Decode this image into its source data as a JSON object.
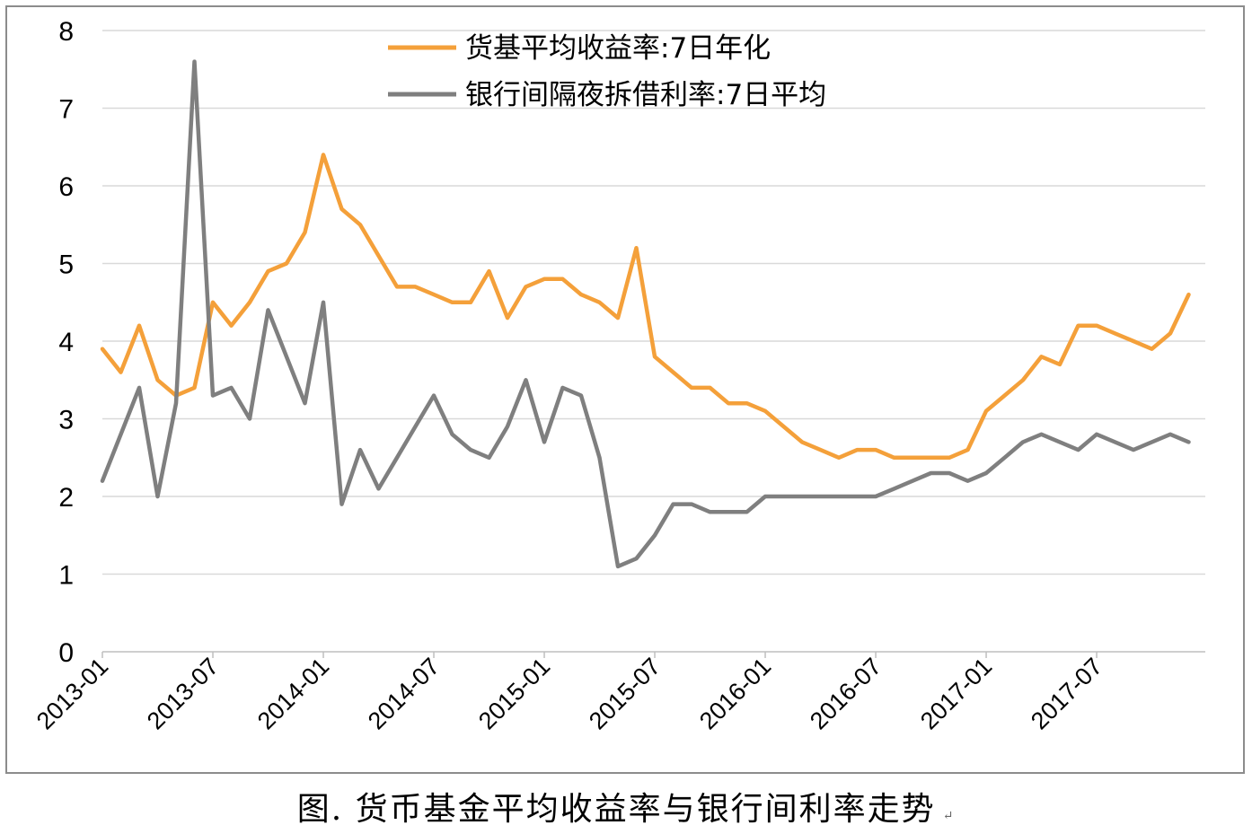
{
  "chart_data": {
    "type": "line",
    "title": "",
    "xlabel": "",
    "ylabel": "",
    "ylim": [
      0,
      8
    ],
    "yticks": [
      0,
      1,
      2,
      3,
      4,
      5,
      6,
      7,
      8
    ],
    "xlim": [
      "2013-01",
      "2017-12"
    ],
    "xticks": [
      "2013-01",
      "2013-07",
      "2014-01",
      "2014-07",
      "2015-01",
      "2015-07",
      "2016-01",
      "2016-07",
      "2017-01",
      "2017-07"
    ],
    "grid": "horizontal",
    "legend_position": "top-center",
    "series": [
      {
        "name": "货基平均收益率:7日年化",
        "color": "#F4A03A",
        "x": [
          "2013-01",
          "2013-02",
          "2013-03",
          "2013-04",
          "2013-05",
          "2013-06",
          "2013-07",
          "2013-08",
          "2013-09",
          "2013-10",
          "2013-11",
          "2013-12",
          "2014-01",
          "2014-02",
          "2014-03",
          "2014-04",
          "2014-05",
          "2014-06",
          "2014-07",
          "2014-08",
          "2014-09",
          "2014-10",
          "2014-11",
          "2014-12",
          "2015-01",
          "2015-02",
          "2015-03",
          "2015-04",
          "2015-05",
          "2015-06",
          "2015-07",
          "2015-08",
          "2015-09",
          "2015-10",
          "2015-11",
          "2015-12",
          "2016-01",
          "2016-02",
          "2016-03",
          "2016-04",
          "2016-05",
          "2016-06",
          "2016-07",
          "2016-08",
          "2016-09",
          "2016-10",
          "2016-11",
          "2016-12",
          "2017-01",
          "2017-02",
          "2017-03",
          "2017-04",
          "2017-05",
          "2017-06",
          "2017-07",
          "2017-08",
          "2017-09",
          "2017-10",
          "2017-11",
          "2017-12"
        ],
        "values": [
          3.9,
          3.6,
          4.2,
          3.5,
          3.3,
          3.4,
          4.5,
          4.2,
          4.5,
          4.9,
          5.0,
          5.4,
          6.4,
          5.7,
          5.5,
          5.1,
          4.7,
          4.7,
          4.6,
          4.5,
          4.5,
          4.9,
          4.3,
          4.7,
          4.8,
          4.8,
          4.6,
          4.5,
          4.3,
          5.2,
          3.8,
          3.6,
          3.4,
          3.4,
          3.2,
          3.2,
          3.1,
          2.9,
          2.7,
          2.6,
          2.5,
          2.6,
          2.6,
          2.5,
          2.5,
          2.5,
          2.5,
          2.6,
          3.1,
          3.3,
          3.5,
          3.8,
          3.7,
          4.2,
          4.2,
          4.1,
          4.0,
          3.9,
          4.1,
          4.6
        ]
      },
      {
        "name": "银行间隔夜拆借利率:7日平均",
        "color": "#7F7F7F",
        "x": [
          "2013-01",
          "2013-02",
          "2013-03",
          "2013-04",
          "2013-05",
          "2013-06",
          "2013-07",
          "2013-08",
          "2013-09",
          "2013-10",
          "2013-11",
          "2013-12",
          "2014-01",
          "2014-02",
          "2014-03",
          "2014-04",
          "2014-05",
          "2014-06",
          "2014-07",
          "2014-08",
          "2014-09",
          "2014-10",
          "2014-11",
          "2014-12",
          "2015-01",
          "2015-02",
          "2015-03",
          "2015-04",
          "2015-05",
          "2015-06",
          "2015-07",
          "2015-08",
          "2015-09",
          "2015-10",
          "2015-11",
          "2015-12",
          "2016-01",
          "2016-02",
          "2016-03",
          "2016-04",
          "2016-05",
          "2016-06",
          "2016-07",
          "2016-08",
          "2016-09",
          "2016-10",
          "2016-11",
          "2016-12",
          "2017-01",
          "2017-02",
          "2017-03",
          "2017-04",
          "2017-05",
          "2017-06",
          "2017-07",
          "2017-08",
          "2017-09",
          "2017-10",
          "2017-11",
          "2017-12"
        ],
        "values": [
          2.2,
          2.8,
          3.4,
          2.0,
          3.2,
          7.6,
          3.3,
          3.4,
          3.0,
          4.4,
          3.8,
          3.2,
          4.5,
          1.9,
          2.6,
          2.1,
          2.5,
          2.9,
          3.3,
          2.8,
          2.6,
          2.5,
          2.9,
          3.5,
          2.7,
          3.4,
          3.3,
          2.5,
          1.1,
          1.2,
          1.5,
          1.9,
          1.9,
          1.8,
          1.8,
          1.8,
          2.0,
          2.0,
          2.0,
          2.0,
          2.0,
          2.0,
          2.0,
          2.1,
          2.2,
          2.3,
          2.3,
          2.2,
          2.3,
          2.5,
          2.7,
          2.8,
          2.7,
          2.6,
          2.8,
          2.7,
          2.6,
          2.7,
          2.8,
          2.7
        ]
      }
    ]
  },
  "caption": {
    "text": "图.  货币基金平均收益率与银行间利率走势",
    "mark": "↵"
  }
}
